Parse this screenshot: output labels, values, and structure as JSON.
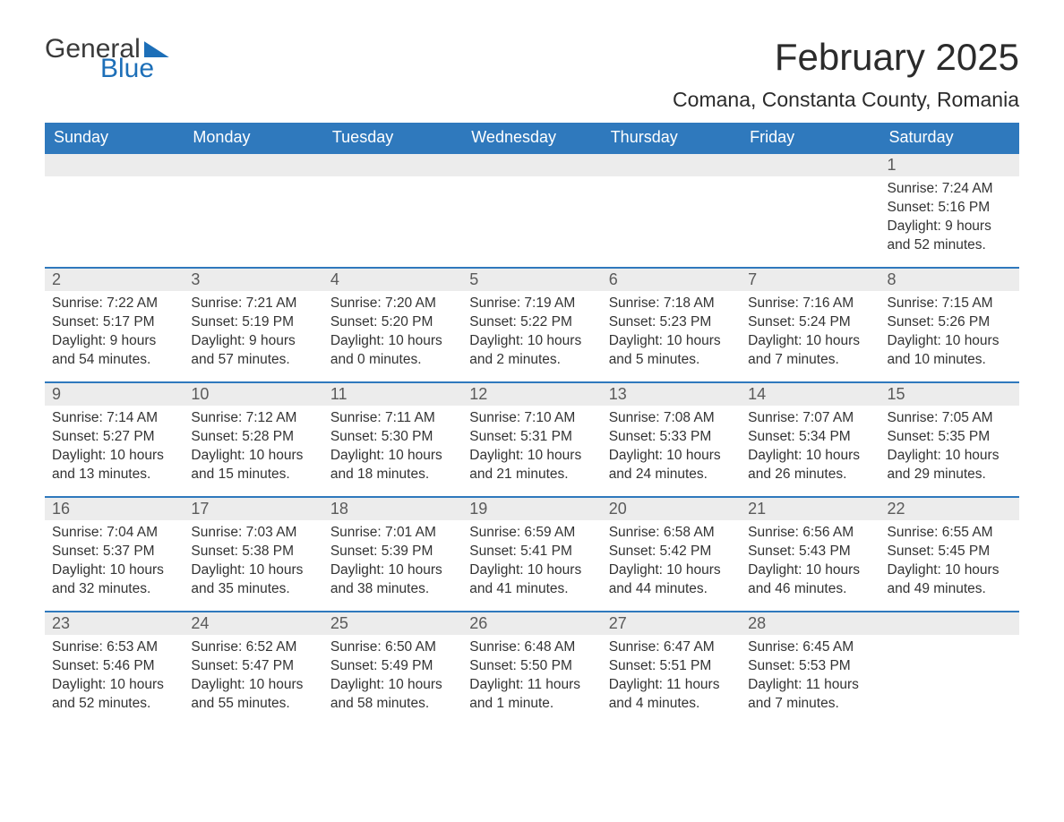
{
  "logo": {
    "word1": "General",
    "word2": "Blue"
  },
  "title": "February 2025",
  "location": "Comana, Constanta County, Romania",
  "colors": {
    "header_bg": "#2f79bd",
    "header_text": "#ffffff",
    "row_border": "#2f79bd",
    "daynum_bg": "#ececec",
    "daynum_text": "#5a5a5a",
    "body_text": "#333333",
    "logo_blue": "#1d6fb8",
    "page_bg": "#ffffff"
  },
  "weekdays": [
    "Sunday",
    "Monday",
    "Tuesday",
    "Wednesday",
    "Thursday",
    "Friday",
    "Saturday"
  ],
  "labels": {
    "sunrise": "Sunrise:",
    "sunset": "Sunset:",
    "daylight": "Daylight:"
  },
  "weeks": [
    [
      null,
      null,
      null,
      null,
      null,
      null,
      {
        "n": "1",
        "sr": "7:24 AM",
        "ss": "5:16 PM",
        "dl": "9 hours and 52 minutes."
      }
    ],
    [
      {
        "n": "2",
        "sr": "7:22 AM",
        "ss": "5:17 PM",
        "dl": "9 hours and 54 minutes."
      },
      {
        "n": "3",
        "sr": "7:21 AM",
        "ss": "5:19 PM",
        "dl": "9 hours and 57 minutes."
      },
      {
        "n": "4",
        "sr": "7:20 AM",
        "ss": "5:20 PM",
        "dl": "10 hours and 0 minutes."
      },
      {
        "n": "5",
        "sr": "7:19 AM",
        "ss": "5:22 PM",
        "dl": "10 hours and 2 minutes."
      },
      {
        "n": "6",
        "sr": "7:18 AM",
        "ss": "5:23 PM",
        "dl": "10 hours and 5 minutes."
      },
      {
        "n": "7",
        "sr": "7:16 AM",
        "ss": "5:24 PM",
        "dl": "10 hours and 7 minutes."
      },
      {
        "n": "8",
        "sr": "7:15 AM",
        "ss": "5:26 PM",
        "dl": "10 hours and 10 minutes."
      }
    ],
    [
      {
        "n": "9",
        "sr": "7:14 AM",
        "ss": "5:27 PM",
        "dl": "10 hours and 13 minutes."
      },
      {
        "n": "10",
        "sr": "7:12 AM",
        "ss": "5:28 PM",
        "dl": "10 hours and 15 minutes."
      },
      {
        "n": "11",
        "sr": "7:11 AM",
        "ss": "5:30 PM",
        "dl": "10 hours and 18 minutes."
      },
      {
        "n": "12",
        "sr": "7:10 AM",
        "ss": "5:31 PM",
        "dl": "10 hours and 21 minutes."
      },
      {
        "n": "13",
        "sr": "7:08 AM",
        "ss": "5:33 PM",
        "dl": "10 hours and 24 minutes."
      },
      {
        "n": "14",
        "sr": "7:07 AM",
        "ss": "5:34 PM",
        "dl": "10 hours and 26 minutes."
      },
      {
        "n": "15",
        "sr": "7:05 AM",
        "ss": "5:35 PM",
        "dl": "10 hours and 29 minutes."
      }
    ],
    [
      {
        "n": "16",
        "sr": "7:04 AM",
        "ss": "5:37 PM",
        "dl": "10 hours and 32 minutes."
      },
      {
        "n": "17",
        "sr": "7:03 AM",
        "ss": "5:38 PM",
        "dl": "10 hours and 35 minutes."
      },
      {
        "n": "18",
        "sr": "7:01 AM",
        "ss": "5:39 PM",
        "dl": "10 hours and 38 minutes."
      },
      {
        "n": "19",
        "sr": "6:59 AM",
        "ss": "5:41 PM",
        "dl": "10 hours and 41 minutes."
      },
      {
        "n": "20",
        "sr": "6:58 AM",
        "ss": "5:42 PM",
        "dl": "10 hours and 44 minutes."
      },
      {
        "n": "21",
        "sr": "6:56 AM",
        "ss": "5:43 PM",
        "dl": "10 hours and 46 minutes."
      },
      {
        "n": "22",
        "sr": "6:55 AM",
        "ss": "5:45 PM",
        "dl": "10 hours and 49 minutes."
      }
    ],
    [
      {
        "n": "23",
        "sr": "6:53 AM",
        "ss": "5:46 PM",
        "dl": "10 hours and 52 minutes."
      },
      {
        "n": "24",
        "sr": "6:52 AM",
        "ss": "5:47 PM",
        "dl": "10 hours and 55 minutes."
      },
      {
        "n": "25",
        "sr": "6:50 AM",
        "ss": "5:49 PM",
        "dl": "10 hours and 58 minutes."
      },
      {
        "n": "26",
        "sr": "6:48 AM",
        "ss": "5:50 PM",
        "dl": "11 hours and 1 minute."
      },
      {
        "n": "27",
        "sr": "6:47 AM",
        "ss": "5:51 PM",
        "dl": "11 hours and 4 minutes."
      },
      {
        "n": "28",
        "sr": "6:45 AM",
        "ss": "5:53 PM",
        "dl": "11 hours and 7 minutes."
      },
      null
    ]
  ]
}
